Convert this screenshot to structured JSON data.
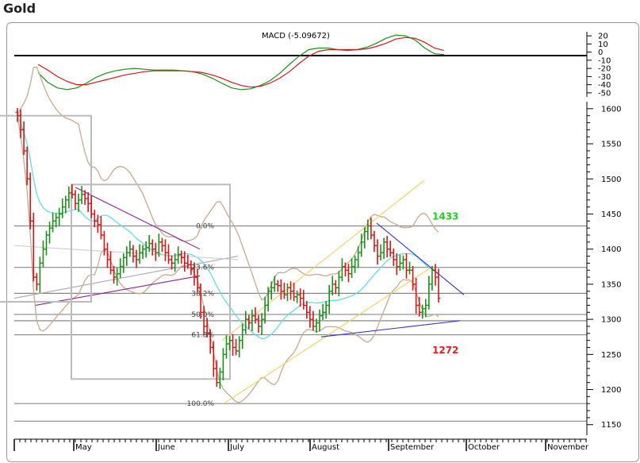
{
  "page_title": "Gold",
  "chart_data": [
    {
      "type": "line",
      "title": "MACD (-5.09672)",
      "yticks": [
        20,
        10,
        0,
        -10,
        -20,
        -30,
        -40,
        -50
      ],
      "ylim": [
        -55,
        25
      ],
      "series": [
        {
          "color": "#1a8f1a",
          "values": [
            -25,
            -37,
            -44,
            -46,
            -44,
            -38,
            -31,
            -26,
            -23,
            -21,
            -20,
            -21,
            -22,
            -22,
            -22,
            -23,
            -24,
            -27,
            -32,
            -38,
            -44,
            -46,
            -45,
            -41,
            -35,
            -26,
            -15,
            -5,
            3,
            5,
            5,
            3,
            2,
            3,
            6,
            11,
            17,
            21,
            20,
            15,
            5,
            -2,
            -3
          ]
        },
        {
          "color": "#d01818",
          "values": [
            -15,
            -22,
            -30,
            -36,
            -40,
            -40,
            -37,
            -34,
            -31,
            -28,
            -26,
            -24,
            -23,
            -23,
            -23,
            -23,
            -24,
            -25,
            -28,
            -32,
            -37,
            -41,
            -43,
            -42,
            -38,
            -32,
            -24,
            -14,
            -5,
            1,
            3,
            3,
            3,
            3,
            4,
            7,
            11,
            16,
            18,
            17,
            12,
            5,
            2
          ]
        }
      ]
    },
    {
      "type": "candlestick",
      "ylim": [
        1135,
        1610
      ],
      "yticks": [
        1600,
        1550,
        1500,
        1450,
        1400,
        1350,
        1300,
        1250,
        1200,
        1150
      ],
      "x_labels": [
        "May",
        "June",
        "July",
        "August",
        "September",
        "October",
        "November"
      ],
      "fib_levels": [
        {
          "label": "0.0%",
          "value": 1433
        },
        {
          "label": "23.6%",
          "value": 1374
        },
        {
          "label": "38.2%",
          "value": 1337
        },
        {
          "label": "50.0%",
          "value": 1307
        },
        {
          "label": "61.8%",
          "value": 1278
        },
        {
          "label": "100.0%",
          "value": 1180
        }
      ],
      "horizontal_levels": [
        1433,
        1374,
        1337,
        1307,
        1298,
        1278,
        1180,
        1155
      ],
      "annotations": [
        {
          "text": "1433",
          "value": 1433,
          "color": "#22cc22"
        },
        {
          "text": "1272",
          "value": 1272,
          "color": "#e02020"
        }
      ],
      "closes": [
        1590,
        1570,
        1540,
        1500,
        1440,
        1360,
        1350,
        1380,
        1400,
        1420,
        1430,
        1440,
        1445,
        1450,
        1460,
        1470,
        1480,
        1478,
        1465,
        1470,
        1478,
        1472,
        1465,
        1450,
        1440,
        1435,
        1420,
        1400,
        1385,
        1370,
        1360,
        1365,
        1375,
        1388,
        1395,
        1400,
        1390,
        1385,
        1395,
        1400,
        1402,
        1408,
        1400,
        1395,
        1410,
        1405,
        1395,
        1385,
        1380,
        1385,
        1392,
        1388,
        1380,
        1378,
        1372,
        1360,
        1345,
        1310,
        1290,
        1280,
        1260,
        1230,
        1210,
        1225,
        1250,
        1265,
        1270,
        1260,
        1255,
        1270,
        1285,
        1300,
        1295,
        1305,
        1300,
        1290,
        1300,
        1320,
        1340,
        1345,
        1350,
        1348,
        1340,
        1335,
        1345,
        1340,
        1332,
        1335,
        1330,
        1320,
        1310,
        1300,
        1290,
        1295,
        1305,
        1310,
        1320,
        1340,
        1350,
        1345,
        1360,
        1375,
        1370,
        1365,
        1375,
        1385,
        1395,
        1410,
        1425,
        1433,
        1420,
        1405,
        1390,
        1395,
        1410,
        1400,
        1395,
        1385,
        1375,
        1380,
        1385,
        1370,
        1370,
        1350,
        1320,
        1310,
        1315,
        1320,
        1350,
        1370,
        1360,
        1330
      ]
    }
  ]
}
